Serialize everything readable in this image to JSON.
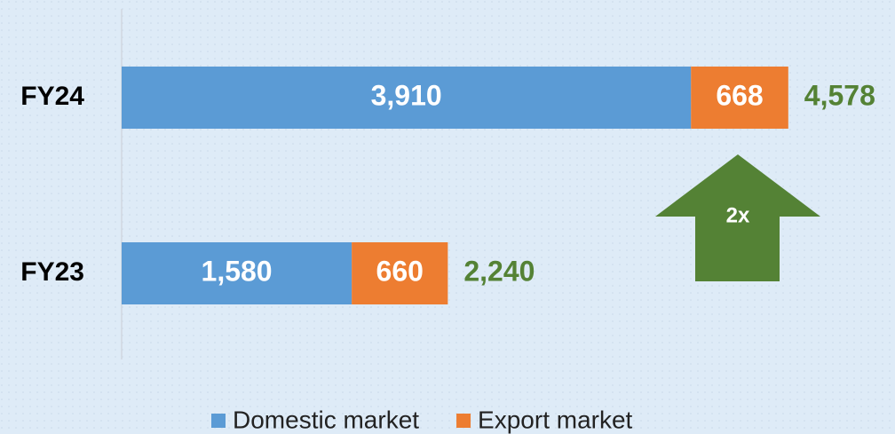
{
  "chart_data": {
    "type": "stacked-bar-horizontal",
    "categories": [
      "FY24",
      "FY23"
    ],
    "series": [
      {
        "name": "Domestic market",
        "color": "#5b9bd5",
        "values": [
          3910,
          1580
        ],
        "value_labels": [
          "3,910",
          "1,580"
        ]
      },
      {
        "name": "Export market",
        "color": "#ed7d31",
        "values": [
          668,
          660
        ]
      }
    ],
    "totals": [
      4578,
      2240
    ],
    "total_labels": [
      "4,578",
      "2,240"
    ],
    "total_color": "#548235",
    "annotation": "2x",
    "annotation_color": "#548235",
    "xlim": [
      0,
      5000
    ]
  }
}
